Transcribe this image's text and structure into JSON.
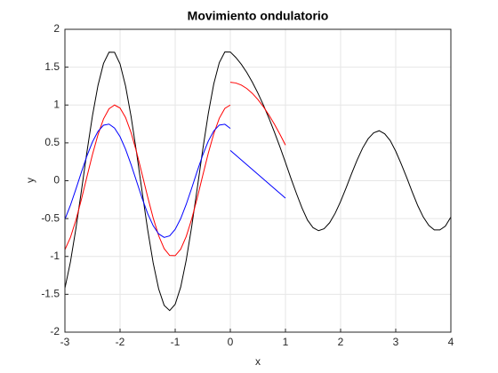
{
  "chart_data": {
    "type": "line",
    "title": "Movimiento ondulatorio",
    "xlabel": "x",
    "ylabel": "y",
    "xlim": [
      -3,
      4
    ],
    "ylim": [
      -2,
      2
    ],
    "xticks": [
      -3,
      -2,
      -1,
      0,
      1,
      2,
      3,
      4
    ],
    "yticks": [
      -2,
      -1.5,
      -1,
      -0.5,
      0,
      0.5,
      1,
      1.5,
      2
    ],
    "grid": true,
    "series": [
      {
        "color": "#000000",
        "x": [
          -3,
          -2.9,
          -2.8,
          -2.7,
          -2.6,
          -2.5,
          -2.4,
          -2.3,
          -2.2,
          -2.1,
          -2,
          -1.9,
          -1.8,
          -1.7,
          -1.6,
          -1.5,
          -1.4,
          -1.3,
          -1.2,
          -1.1,
          -1,
          -0.9,
          -0.8,
          -0.7,
          -0.6,
          -0.5,
          -0.4,
          -0.3,
          -0.2,
          -0.1,
          0,
          0.1,
          0.2,
          0.3,
          0.4,
          0.5,
          0.6,
          0.7,
          0.8,
          0.9,
          1,
          1.1,
          1.2,
          1.3,
          1.4,
          1.5,
          1.6,
          1.7,
          1.8,
          1.9,
          2,
          2.1,
          2.2,
          2.3,
          2.4,
          2.5,
          2.6,
          2.7,
          2.8,
          2.9,
          3,
          3.1,
          3.2,
          3.3,
          3.4,
          3.5,
          3.6,
          3.7,
          3.8,
          3.9,
          4
        ],
        "values": [
          -1.42,
          -1.073,
          -0.628,
          -0.129,
          0.383,
          0.86,
          1.26,
          1.549,
          1.698,
          1.696,
          1.542,
          1.251,
          0.848,
          0.369,
          -0.144,
          -0.643,
          -1.083,
          -1.428,
          -1.646,
          -1.715,
          -1.632,
          -1.404,
          -1.049,
          -0.602,
          -0.1,
          0.411,
          0.885,
          1.28,
          1.56,
          1.701,
          1.7,
          1.628,
          1.537,
          1.428,
          1.301,
          1.158,
          0.999,
          0.827,
          0.642,
          0.446,
          0.241,
          0.03,
          -0.17,
          -0.36,
          -0.52,
          -0.62,
          -0.66,
          -0.634,
          -0.556,
          -0.432,
          -0.274,
          -0.094,
          0.094,
          0.274,
          0.432,
          0.555,
          0.633,
          0.66,
          0.62,
          0.53,
          0.39,
          0.22,
          0.04,
          -0.15,
          -0.33,
          -0.48,
          -0.59,
          -0.65,
          -0.65,
          -0.6,
          -0.48
        ]
      },
      {
        "color": "#ff0000",
        "x": [
          -3,
          -2.9,
          -2.8,
          -2.7,
          -2.6,
          -2.5,
          -2.4,
          -2.3,
          -2.2,
          -2.1,
          -2,
          -1.9,
          -1.8,
          -1.7,
          -1.6,
          -1.5,
          -1.4,
          -1.3,
          -1.2,
          -1.1,
          -1,
          -0.9,
          -0.8,
          -0.7,
          -0.6,
          -0.5,
          -0.4,
          -0.3,
          -0.2,
          -0.1,
          0
        ],
        "values": [
          -0.911,
          -0.749,
          -0.519,
          -0.244,
          0.054,
          0.347,
          0.608,
          0.816,
          0.95,
          1,
          0.96,
          0.835,
          0.635,
          0.378,
          0.087,
          -0.211,
          -0.49,
          -0.726,
          -0.897,
          -0.987,
          -0.99,
          -0.904,
          -0.737,
          -0.505,
          -0.227,
          0.071,
          0.362,
          0.622,
          0.825,
          0.955,
          1
        ]
      },
      {
        "color": "#ff0000",
        "x": [
          0,
          0.1,
          0.2,
          0.3,
          0.4,
          0.5,
          0.6,
          0.7,
          0.8,
          0.9,
          1
        ],
        "values": [
          1.3,
          1.291,
          1.263,
          1.217,
          1.153,
          1.073,
          0.977,
          0.868,
          0.746,
          0.613,
          0.471
        ]
      },
      {
        "color": "#0000ff",
        "x": [
          -3,
          -2.9,
          -2.8,
          -2.7,
          -2.6,
          -2.5,
          -2.4,
          -2.3,
          -2.2,
          -2.1,
          -2,
          -1.9,
          -1.8,
          -1.7,
          -1.6,
          -1.5,
          -1.4,
          -1.3,
          -1.2,
          -1.1,
          -1,
          -0.9,
          -0.8,
          -0.7,
          -0.6,
          -0.5,
          -0.4,
          -0.3,
          -0.2,
          -0.1,
          0
        ],
        "values": [
          -0.509,
          -0.324,
          -0.109,
          0.115,
          0.329,
          0.513,
          0.652,
          0.733,
          0.748,
          0.696,
          0.582,
          0.416,
          0.213,
          -0.009,
          -0.231,
          -0.432,
          -0.593,
          -0.702,
          -0.749,
          -0.728,
          -0.642,
          -0.5,
          -0.312,
          -0.097,
          0.127,
          0.34,
          0.523,
          0.658,
          0.735,
          0.746,
          0.691
        ]
      },
      {
        "color": "#0000ff",
        "x": [
          0,
          0.1,
          0.2,
          0.3,
          0.4,
          0.5,
          0.6,
          0.7,
          0.8,
          0.9,
          1
        ],
        "values": [
          0.4,
          0.337,
          0.274,
          0.211,
          0.148,
          0.085,
          0.022,
          -0.041,
          -0.104,
          -0.167,
          -0.23
        ]
      }
    ]
  }
}
